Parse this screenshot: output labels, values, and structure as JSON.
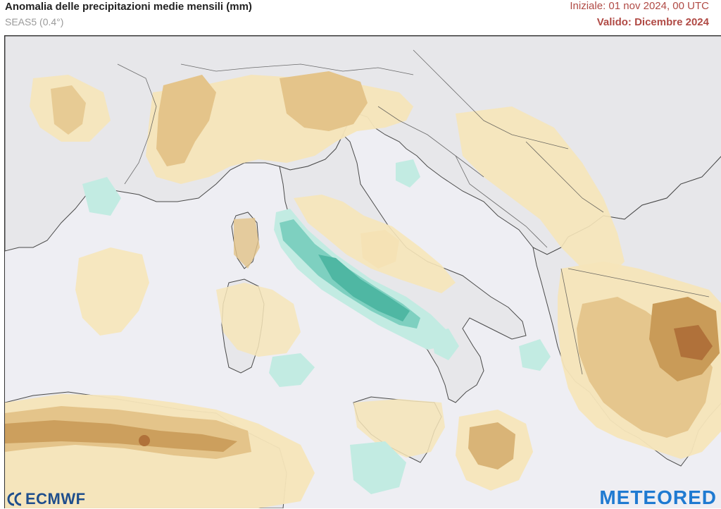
{
  "header": {
    "title": "Anomalia delle precipitazioni medie mensili (mm)",
    "model": "SEAS5 (0.4°)",
    "init": "Iniziale: 01 nov 2024, 00 UTC",
    "valid": "Valido: Dicembre 2024"
  },
  "colors": {
    "sea": "#eeeef3",
    "land": "#e7e7ea",
    "dry_light": "#f6e5b9",
    "dry_medium": "#e4c48a",
    "dry_strong": "#c99b58",
    "dry_max": "#b0713a",
    "wet_light": "#c2ebe2",
    "wet_medium": "#7ed0c0",
    "wet_strong": "#4fb7a3",
    "borders": "#4a4a4a",
    "brand_ecmwf": "#1f4e8c",
    "brand_meteored": "#1f7ad1"
  },
  "logos": {
    "ecmwf": "ECMWF",
    "meteored": "METEORED"
  }
}
